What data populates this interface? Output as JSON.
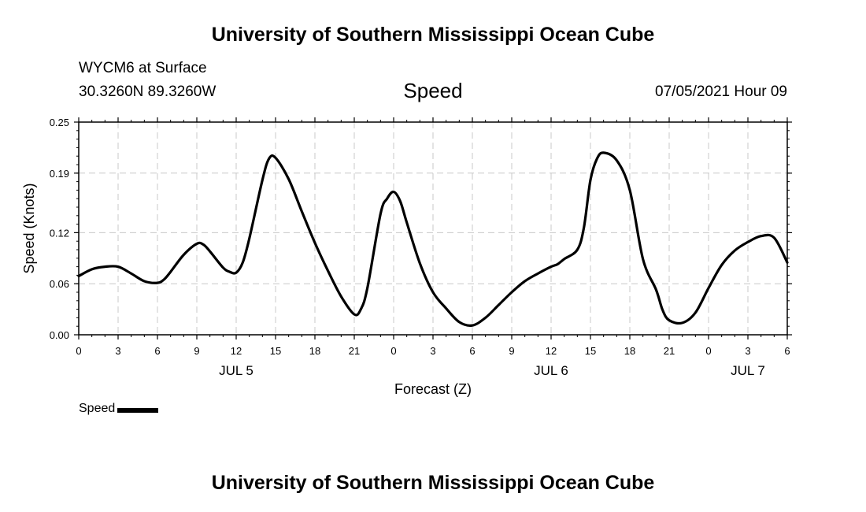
{
  "header": {
    "title": "University of Southern Mississippi Ocean Cube",
    "station": "WYCM6 at Surface",
    "coords": "30.3260N  89.3260W",
    "parameter": "Speed",
    "datetime": "07/05/2021 Hour 09"
  },
  "footer": {
    "title": "University of Southern Mississippi Ocean Cube"
  },
  "legend": {
    "label": "Speed",
    "color": "#000000"
  },
  "chart_data": {
    "type": "line",
    "xlabel": "Forecast (Z)",
    "ylabel": "Speed (Knots)",
    "xlim": [
      0,
      54
    ],
    "ylim": [
      0,
      0.25
    ],
    "yticks": [
      0,
      0.06,
      0.12,
      0.19,
      0.25
    ],
    "ytick_labels": [
      "0.00",
      "0.06",
      "0.12",
      "0.19",
      "0.25"
    ],
    "xticks": [
      0,
      3,
      6,
      9,
      12,
      15,
      18,
      21,
      24,
      27,
      30,
      33,
      36,
      39,
      42,
      45,
      48,
      51,
      54
    ],
    "xtick_labels": [
      "0",
      "3",
      "6",
      "9",
      "12",
      "15",
      "18",
      "21",
      "0",
      "3",
      "6",
      "9",
      "12",
      "15",
      "18",
      "21",
      "0",
      "3",
      "6"
    ],
    "day_labels": [
      {
        "x": 12,
        "label": "JUL 5"
      },
      {
        "x": 36,
        "label": "JUL 6"
      },
      {
        "x": 51,
        "label": "JUL 7"
      }
    ],
    "grid": true,
    "series": [
      {
        "name": "Speed",
        "color": "#000000",
        "x": [
          0,
          1,
          2,
          3,
          4,
          5,
          6,
          6.5,
          7,
          8,
          9,
          9.5,
          10,
          11,
          11.5,
          12,
          12.5,
          13,
          14,
          14.5,
          15,
          16,
          17,
          18,
          19,
          20,
          21,
          21.5,
          22,
          23,
          23.5,
          24,
          24.5,
          25,
          26,
          27,
          28,
          29,
          30,
          31,
          32,
          33,
          34,
          35,
          36,
          36.5,
          37,
          38,
          38.5,
          39,
          39.5,
          40,
          41,
          42,
          43,
          44,
          44.5,
          45,
          46,
          47,
          48,
          49,
          50,
          51,
          52,
          53,
          54
        ],
        "y": [
          0.069,
          0.077,
          0.08,
          0.08,
          0.072,
          0.063,
          0.061,
          0.065,
          0.074,
          0.094,
          0.107,
          0.106,
          0.098,
          0.079,
          0.074,
          0.073,
          0.085,
          0.113,
          0.182,
          0.207,
          0.208,
          0.183,
          0.145,
          0.108,
          0.075,
          0.045,
          0.024,
          0.03,
          0.055,
          0.142,
          0.16,
          0.168,
          0.157,
          0.132,
          0.084,
          0.05,
          0.031,
          0.015,
          0.011,
          0.02,
          0.035,
          0.05,
          0.063,
          0.072,
          0.08,
          0.083,
          0.089,
          0.1,
          0.126,
          0.182,
          0.207,
          0.214,
          0.205,
          0.17,
          0.089,
          0.053,
          0.029,
          0.017,
          0.014,
          0.026,
          0.055,
          0.082,
          0.099,
          0.109,
          0.116,
          0.114,
          0.085
        ]
      }
    ]
  }
}
